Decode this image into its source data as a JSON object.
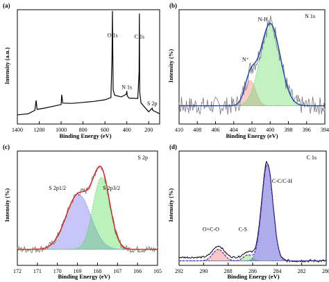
{
  "chart_data": [
    {
      "panel": "(a)",
      "type": "line",
      "title": "",
      "xlabel": "Binding Energy (eV)",
      "ylabel": "Intensity (a.u.)",
      "xlim": [
        1400,
        100
      ],
      "x_reversed": true,
      "xticks": [
        1400,
        1200,
        1000,
        800,
        600,
        400,
        200
      ],
      "ylim": [
        0,
        10
      ],
      "y_tick_labels": false,
      "annotations": [
        {
          "text": "O 1s",
          "x": 530,
          "y": 7.6
        },
        {
          "text": "C 1s",
          "x": 285,
          "y": 7.5
        },
        {
          "text": "N 1s",
          "x": 400,
          "y": 3.05
        },
        {
          "text": "S 2p",
          "x": 168,
          "y": 1.65
        }
      ],
      "series": [
        {
          "color": "#000000",
          "x": [
            1400,
            1300,
            1240,
            1228,
            1220,
            1150,
            1000,
            995,
            985,
            900,
            800,
            700,
            600,
            545,
            535,
            531,
            525,
            510,
            450,
            405,
            400,
            396,
            380,
            300,
            288,
            285,
            282,
            270,
            200,
            168,
            164,
            100
          ],
          "y": [
            0.8,
            0.9,
            1.2,
            2.1,
            1.3,
            1.4,
            1.7,
            2.6,
            1.8,
            1.8,
            1.9,
            2.0,
            2.1,
            2.3,
            6.0,
            9.9,
            3.0,
            2.5,
            2.4,
            2.6,
            2.9,
            2.5,
            2.3,
            2.2,
            4.5,
            9.7,
            2.8,
            1.8,
            1.1,
            1.4,
            1.2,
            0.9
          ]
        }
      ]
    },
    {
      "panel": "(b)",
      "type": "line",
      "title": "N 1s",
      "xlabel": "Binding Energy (eV)",
      "ylabel": "Intensity (%)",
      "xlim": [
        410,
        394
      ],
      "x_reversed": true,
      "xticks": [
        410,
        408,
        406,
        404,
        402,
        400,
        398,
        396,
        394
      ],
      "ylim": [
        0,
        1
      ],
      "y_tick_labels": false,
      "annotations": [
        {
          "text": "N-H",
          "x": 400.8,
          "y": 0.9
        },
        {
          "text": "N⁺",
          "x": 402.7,
          "y": 0.55
        }
      ],
      "components": [
        {
          "label": "N⁺",
          "center": 402.2,
          "height": 0.22,
          "width": 0.6,
          "color": "#f08080"
        },
        {
          "label": "N-H",
          "center": 400.0,
          "height": 0.72,
          "width": 1.1,
          "color": "#66dd66"
        }
      ],
      "baseline": 0.16,
      "series": [
        {
          "name": "raw",
          "color": "#777777"
        },
        {
          "name": "fit",
          "color": "#1f3fbf"
        }
      ]
    },
    {
      "panel": "(c)",
      "type": "line",
      "title": "S 2p",
      "xlabel": "Binding Energy (eV)",
      "ylabel": "Intensity (%)",
      "xlim": [
        172,
        165
      ],
      "x_reversed": true,
      "xticks": [
        172,
        171,
        170,
        169,
        168,
        167,
        166,
        165
      ],
      "ylim": [
        0,
        1
      ],
      "y_tick_labels": false,
      "annotations": [
        {
          "text": "S 2p1/2",
          "x": 170.0,
          "y": 0.66
        },
        {
          "text": "S 2p3/2",
          "x": 167.3,
          "y": 0.66
        }
      ],
      "components": [
        {
          "label": "S 2p1/2",
          "center": 168.95,
          "height": 0.48,
          "width": 0.62,
          "color": "#7070ee"
        },
        {
          "label": "S 2p3/2",
          "center": 167.8,
          "height": 0.63,
          "width": 0.42,
          "color": "#55dd55"
        }
      ],
      "baseline": 0.14,
      "series": [
        {
          "name": "raw",
          "color": "#888888"
        },
        {
          "name": "fit",
          "color": "#e02020"
        }
      ]
    },
    {
      "panel": "(d)",
      "type": "line",
      "title": "C 1s",
      "xlabel": "Binding Energy (eV)",
      "ylabel": "Intensity (%)",
      "xlim": [
        292,
        280
      ],
      "x_reversed": true,
      "xticks": [
        292,
        290,
        288,
        286,
        284,
        282,
        280
      ],
      "ylim": [
        0,
        1
      ],
      "y_tick_labels": false,
      "annotations": [
        {
          "text": "O=C-O",
          "x": 289.4,
          "y": 0.3
        },
        {
          "text": "C-S",
          "x": 286.8,
          "y": 0.3
        },
        {
          "text": "C-C/C-H",
          "x": 283.6,
          "y": 0.72
        }
      ],
      "components": [
        {
          "label": "O=C-O",
          "center": 288.8,
          "height": 0.1,
          "width": 0.45,
          "color": "#f07070"
        },
        {
          "label": "C-S",
          "center": 286.4,
          "height": 0.05,
          "width": 0.35,
          "color": "#66dd66"
        },
        {
          "label": "C-C/C-H",
          "center": 284.8,
          "height": 0.85,
          "width": 0.45,
          "color": "#3333cc"
        }
      ],
      "baseline": 0.04,
      "series": [
        {
          "name": "raw",
          "color": "#000000"
        },
        {
          "name": "fit",
          "color": "#5a35d0"
        }
      ]
    }
  ]
}
